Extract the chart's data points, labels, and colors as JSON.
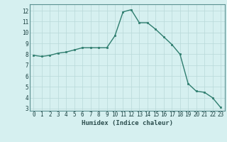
{
  "x": [
    0,
    1,
    2,
    3,
    4,
    5,
    6,
    7,
    8,
    9,
    10,
    11,
    12,
    13,
    14,
    15,
    16,
    17,
    18,
    19,
    20,
    21,
    22,
    23
  ],
  "y": [
    7.9,
    7.8,
    7.9,
    8.1,
    8.2,
    8.4,
    8.6,
    8.6,
    8.6,
    8.6,
    9.7,
    11.9,
    12.1,
    10.9,
    10.9,
    10.3,
    9.6,
    8.9,
    8.0,
    5.3,
    4.6,
    4.5,
    4.0,
    3.1
  ],
  "line_color": "#2e7d6e",
  "marker": "s",
  "marker_size": 2.0,
  "bg_color": "#d6f0f0",
  "grid_color": "#b8d8d8",
  "xlabel": "Humidex (Indice chaleur)",
  "ylim": [
    2.8,
    12.6
  ],
  "xlim": [
    -0.5,
    23.5
  ],
  "yticks": [
    3,
    4,
    5,
    6,
    7,
    8,
    9,
    10,
    11,
    12
  ],
  "xticks": [
    0,
    1,
    2,
    3,
    4,
    5,
    6,
    7,
    8,
    9,
    10,
    11,
    12,
    13,
    14,
    15,
    16,
    17,
    18,
    19,
    20,
    21,
    22,
    23
  ],
  "tick_fontsize": 5.5,
  "xlabel_fontsize": 6.5,
  "line_width": 1.0
}
